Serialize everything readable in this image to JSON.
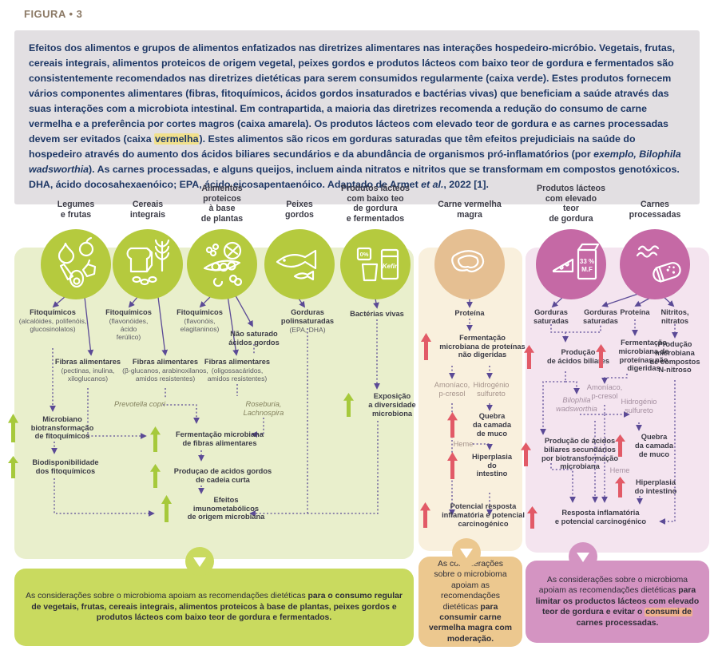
{
  "figure_label": "FIGURA • 3",
  "caption": {
    "segments": [
      {
        "t": "Efeitos dos alimentos e grupos de alimentos enfatizados nas diretrizes alimentares nas interações hospedeiro-micróbio. Vegetais, frutas, cereais integrais, alimentos proteicos de origem vegetal, peixes gordos e produtos lácteos com baixo teor de gordura e fermentados são consistentemente recomendados nas diretrizes dietéticas para serem consumidos regularmente (caixa verde). Estes produtos fornecem vários componentes alimentares (fibras, fitoquímicos, ácidos gordos insaturados e bactérias vivas) que beneficiam a saúde através das suas interações com a microbiota intestinal. Em contrapartida, a maioria das diretrizes recomenda a redução do consumo de carne vermelha e a preferência por cortes magros (caixa amarela). Os produtos lácteos com elevado teor de gordura e as carnes processadas devem ser evitados (caixa "
      },
      {
        "t": "vermelha",
        "hl": true
      },
      {
        "t": "). Estes alimentos são ricos em gorduras saturadas que têm efeitos prejudiciais na saúde do hospedeiro através do aumento dos ácidos biliares secundários e da abundância de organismos pró-inflamatórios (por "
      },
      {
        "t": "exemplo, Bilophila wadsworthia",
        "i": true
      },
      {
        "t": "). As carnes processadas, e alguns queijos, incluem ainda nitratos e nitritos que se transformam em compostos genotóxicos. DHA, ácido docosahexaenóico; EPA, ácido eicosapentaenóico. Adaptado de Armet "
      },
      {
        "t": "et al.",
        "i": true
      },
      {
        "t": ", 2022 [1]."
      }
    ]
  },
  "columns": [
    {
      "id": "legumes",
      "header": "Legumes\ne frutas",
      "icon": "fruits-vegetables-icon",
      "panel": "green"
    },
    {
      "id": "cereais",
      "header": "Cereais\nintegrais",
      "icon": "whole-grains-icon",
      "panel": "green"
    },
    {
      "id": "proteicos",
      "header": "Alimentos\nproteicos\nà base\nde plantas",
      "icon": "plant-protein-icon",
      "panel": "green"
    },
    {
      "id": "peixes",
      "header": "Peixes\ngordos",
      "icon": "fish-icon",
      "panel": "green"
    },
    {
      "id": "lacteos_baixo",
      "header": "Produtos lácteos\ncom baixo teo\nde gordura\ne fermentados",
      "icon": "low-fat-dairy-icon",
      "panel": "green"
    },
    {
      "id": "carne_magra",
      "header": "Carne vermelha\nmagra",
      "icon": "lean-meat-icon",
      "panel": "tan"
    },
    {
      "id": "lacteos_alto",
      "header": "Produtos lácteos\ncom elevado\nteor\nde gordura",
      "icon": "high-fat-dairy-icon",
      "panel": "pink"
    },
    {
      "id": "processadas",
      "header": "Carnes\nprocessadas",
      "icon": "processed-meat-icon",
      "panel": "pink"
    }
  ],
  "icon_labels": {
    "zero_percent": "0%",
    "kefir": "Kefir",
    "milk_fat_line1": "33 %",
    "milk_fat_line2": "M.F"
  },
  "nodes": [
    {
      "id": "g_fito1",
      "title": "Fitoquímicos",
      "sub": "(alcalóides, polifenóis,\nglucosinolatos)"
    },
    {
      "id": "g_fito2",
      "title": "Fitoquímicos",
      "sub": "(flavonóides,\nácido\nferúlico)"
    },
    {
      "id": "g_fito3",
      "title": "Fitoquímicos",
      "sub": "(flavonóis,\nelagitaninos)"
    },
    {
      "id": "g_nsat",
      "title": "Não saturado\nácidos gordos"
    },
    {
      "id": "g_gord",
      "title": "Gorduras\npolinsaturadas",
      "sub": "(EPA, DHA)"
    },
    {
      "id": "g_bact",
      "title": "Bactérias vivas"
    },
    {
      "id": "g_fib1",
      "title": "Fibras alimentares",
      "sub": "(pectinas, inulina,\nxiloglucanos)"
    },
    {
      "id": "g_fib2",
      "title": "Fibras alimentares",
      "sub": "(β-glucanos, arabinoxilanos,\namidos resistentes)"
    },
    {
      "id": "g_fib3",
      "title": "Fibras alimentares",
      "sub": "(oligossacáridos,\namidos resistentes)"
    },
    {
      "id": "g_micro",
      "title": "Microbiano\nbiotransformação\nde fitoquímicos",
      "arrow": "green"
    },
    {
      "id": "g_prev",
      "title": "Prevotella copri",
      "muted": true,
      "italic": true
    },
    {
      "id": "g_rose",
      "title": "Roseburia,\nLachnospira",
      "muted": true,
      "italic": true
    },
    {
      "id": "g_ferm",
      "title": "Fermentação microbiana\nde fibras alimentares",
      "arrow": "green"
    },
    {
      "id": "g_biod",
      "title": "Biodisponibilidade\ndos fitoquímicos",
      "arrow": "green"
    },
    {
      "id": "g_prod",
      "title": "Produçao de acidos gordos\nde cadeia curta",
      "arrow": "green"
    },
    {
      "id": "g_efe",
      "title": "Efeitos\nimunometabólicos\nde origem microbiana",
      "arrow": "green"
    },
    {
      "id": "g_expo",
      "title": "Exposição\na diversidade\nmicrobiona",
      "arrow": "green"
    },
    {
      "id": "t_prot",
      "title": "Proteína"
    },
    {
      "id": "t_ferm",
      "title": "Fermentação\nmicrobiana de proteínas\nnão digeridas",
      "arrow": "red"
    },
    {
      "id": "t_amon",
      "title": "Amoníaco,\np-cresol",
      "muted": true
    },
    {
      "id": "t_hidro",
      "title": "Hidrogénio\nsulfureto",
      "muted": true
    },
    {
      "id": "t_que",
      "title": "Quebra\nda camada\nde muco",
      "arrow": "red"
    },
    {
      "id": "t_heme",
      "title": "Heme",
      "muted": true
    },
    {
      "id": "t_hip",
      "title": "Hiperplasia\ndo\nintestino",
      "arrow": "red"
    },
    {
      "id": "t_pot",
      "title": "Potencial resposta\ninflamatória e potencial\ncarcinogénico",
      "arrow": "red"
    },
    {
      "id": "p_gsa",
      "title": "Gorduras\nsaturadas"
    },
    {
      "id": "p_gsb",
      "title": "Gorduras\nsaturadas"
    },
    {
      "id": "p_prot",
      "title": "Proteína"
    },
    {
      "id": "p_nit",
      "title": "Nitritos,\nnitratos"
    },
    {
      "id": "p_bili",
      "title": "Produção\nde ácidos biliares",
      "arrow": "red"
    },
    {
      "id": "p_ferm",
      "title": "Fermentação\nmicrobiana de\nproteínas não\ndigeridas",
      "arrow": "red"
    },
    {
      "id": "p_nitr",
      "title": "Produção\nmicrobiana\nde compostos\nN-nitroso"
    },
    {
      "id": "p_amon",
      "title": "Amoníaco,\np-cresol",
      "muted": true
    },
    {
      "id": "p_bilo",
      "title": "Bilophila\nwadsworthia",
      "muted": true,
      "italic": true
    },
    {
      "id": "p_hid",
      "title": "Hidrogénio\nsulfureto",
      "muted": true
    },
    {
      "id": "p_sec",
      "title": "Produção de ácidos\nbiliares secundários\npor biotransformação\nmicrobiana",
      "arrow": "red"
    },
    {
      "id": "p_que",
      "title": "Quebra\nda camada\nde muco",
      "arrow": "red"
    },
    {
      "id": "p_heme",
      "title": "Heme",
      "muted": true
    },
    {
      "id": "p_hip",
      "title": "Hiperplasia\ndo intestino",
      "arrow": "red"
    },
    {
      "id": "p_resp",
      "title": "Resposta inflamatória\ne potencial carcinogénico",
      "arrow": "red"
    }
  ],
  "bottom_boxes": {
    "green": {
      "segments": [
        {
          "t": "As considerações sobre o microbioma apoiam as recomendações dietéticas "
        },
        {
          "t": "para o consumo regular de vegetais, frutas, cereais integrais, alimentos proteicos à base de plantas, peixes gordos e produtos lácteos com baixo teor de gordura e fermentados.",
          "b": true
        }
      ]
    },
    "tan": {
      "segments": [
        {
          "t": "As considerações sobre o microbioma apoiam as recomendações dietéticas "
        },
        {
          "t": "para consumir carne vermelha magra com moderação.",
          "b": true
        }
      ]
    },
    "pink": {
      "segments": [
        {
          "t": "As considerações sobre o microbioma apoiam as recomendações dietéticas "
        },
        {
          "t": "para limitar os productos lácteos com elevado teor de gordura e evitar o ",
          "b": true
        },
        {
          "t": "consumi de",
          "b": true,
          "hl": true
        },
        {
          "t": " carnes processadas.",
          "b": true
        }
      ]
    }
  },
  "colors": {
    "navy": "#1d3765",
    "caption_bg": "#e2dfe2",
    "figure_label": "#8c7a66",
    "highlight_yellow": "#f1e08c",
    "highlight_salmon": "#efb28e",
    "purple": "#5b4a96",
    "green_panel": "#e9efcc",
    "green_circle": "#b5ca3e",
    "green_box": "#c9da5f",
    "green_arrow": "#a6c93b",
    "tan_panel": "#f9f0dd",
    "tan_circle": "#e5bf92",
    "tan_box": "#ecc88f",
    "pink_panel": "#f4e4ef",
    "pink_circle": "#c569a5",
    "pink_box": "#d494c2",
    "red_arrow": "#e25a67"
  }
}
